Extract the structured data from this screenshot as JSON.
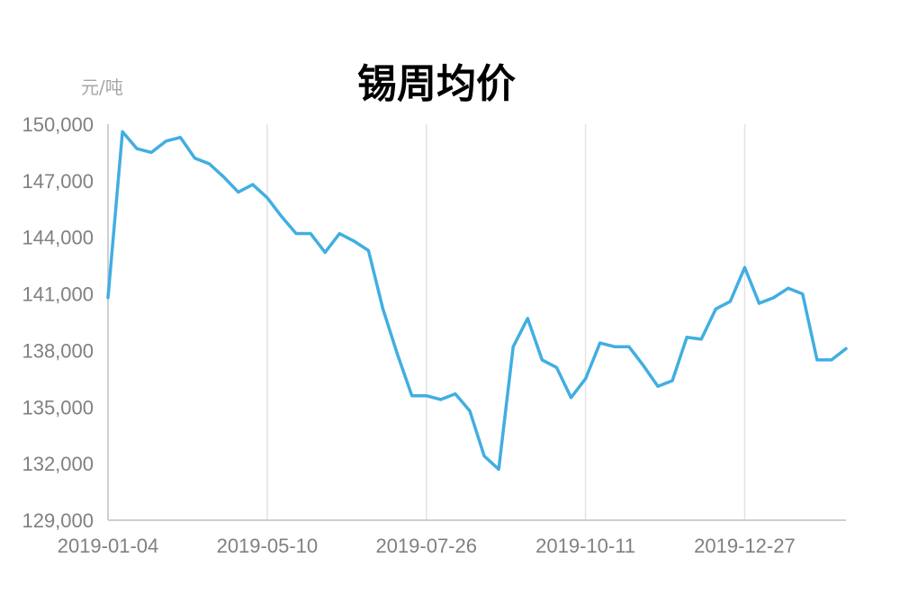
{
  "chart_data": {
    "type": "line",
    "title": "锡周均价",
    "ylabel": "元/吨",
    "xlabel": "",
    "ylim": [
      129000,
      150000
    ],
    "yticks": [
      "150,000",
      "147,000",
      "144,000",
      "141,000",
      "138,000",
      "135,000",
      "132,000",
      "129,000"
    ],
    "ytick_values": [
      150000,
      147000,
      144000,
      141000,
      138000,
      135000,
      132000,
      129000
    ],
    "xtick_labels": [
      "2019-01-04",
      "2019-05-10",
      "2019-07-26",
      "2019-10-11",
      "2019-12-27"
    ],
    "xtick_indices": [
      0,
      11,
      22,
      33,
      44
    ],
    "vertical_grid": true,
    "horizontal_grid": false,
    "line_color": "#41aee2",
    "series": [
      {
        "values": [
          140800,
          149600,
          148700,
          148500,
          149100,
          149300,
          148200,
          147900,
          147200,
          146400,
          146800,
          146100,
          145100,
          144200,
          144200,
          143200,
          144200,
          143800,
          143300,
          140200,
          137800,
          135600,
          135600,
          135400,
          135700,
          134800,
          132400,
          131700,
          138200,
          139700,
          137500,
          137100,
          135500,
          136500,
          138400,
          138200,
          138200,
          137200,
          136100,
          136400,
          138700,
          138600,
          140200,
          140600,
          142400,
          140500,
          140800,
          141300,
          141000,
          137500,
          137500,
          138100
        ]
      }
    ]
  }
}
